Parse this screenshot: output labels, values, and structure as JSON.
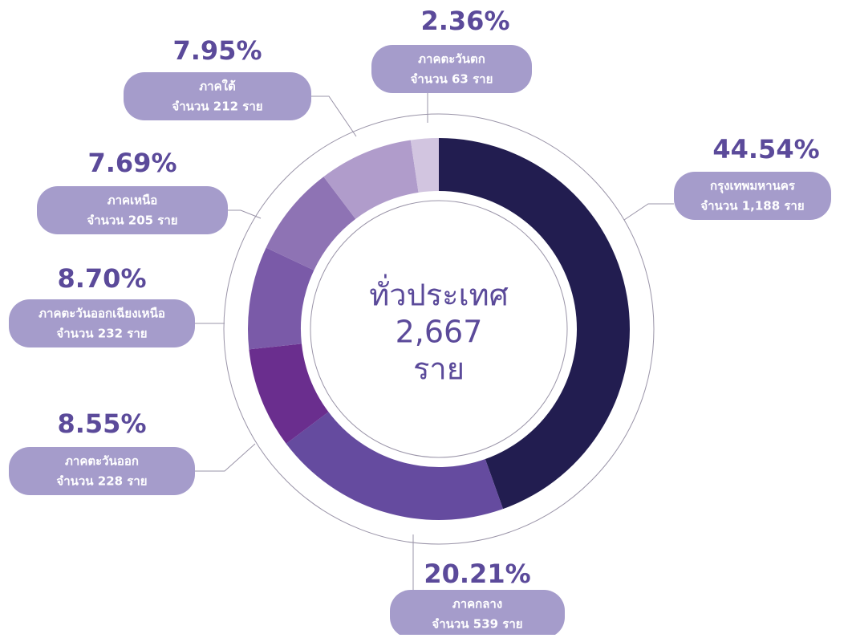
{
  "chart_data": {
    "type": "pie",
    "donut": true,
    "categories": [
      "กรุงเทพมหานคร",
      "ภาคกลาง",
      "ภาคตะวันออก",
      "ภาคตะวันออกเฉียงเหนือ",
      "ภาคเหนือ",
      "ภาคใต้",
      "ภาคตะวันตก"
    ],
    "values": [
      44.54,
      20.21,
      8.55,
      8.7,
      7.69,
      7.95,
      2.36
    ],
    "value_labels": [
      "44.54%",
      "20.21%",
      "8.55%",
      "8.70%",
      "7.69%",
      "7.95%",
      "2.36%"
    ],
    "details": [
      "จำนวน 1,188 ราย",
      "จำนวน 539 ราย",
      "จำนวน 228 ราย",
      "จำนวน 232 ราย",
      "จำนวน 205 ราย",
      "จำนวน 212 ราย",
      "จำนวน 63 ราย"
    ],
    "colors": [
      "#221d50",
      "#654b9f",
      "#6a2e8e",
      "#7a5aa8",
      "#8e73b4",
      "#b09ccb",
      "#d2c5e0"
    ],
    "center_label": [
      "ทั่วประเทศ",
      "2,667",
      "ราย"
    ]
  }
}
